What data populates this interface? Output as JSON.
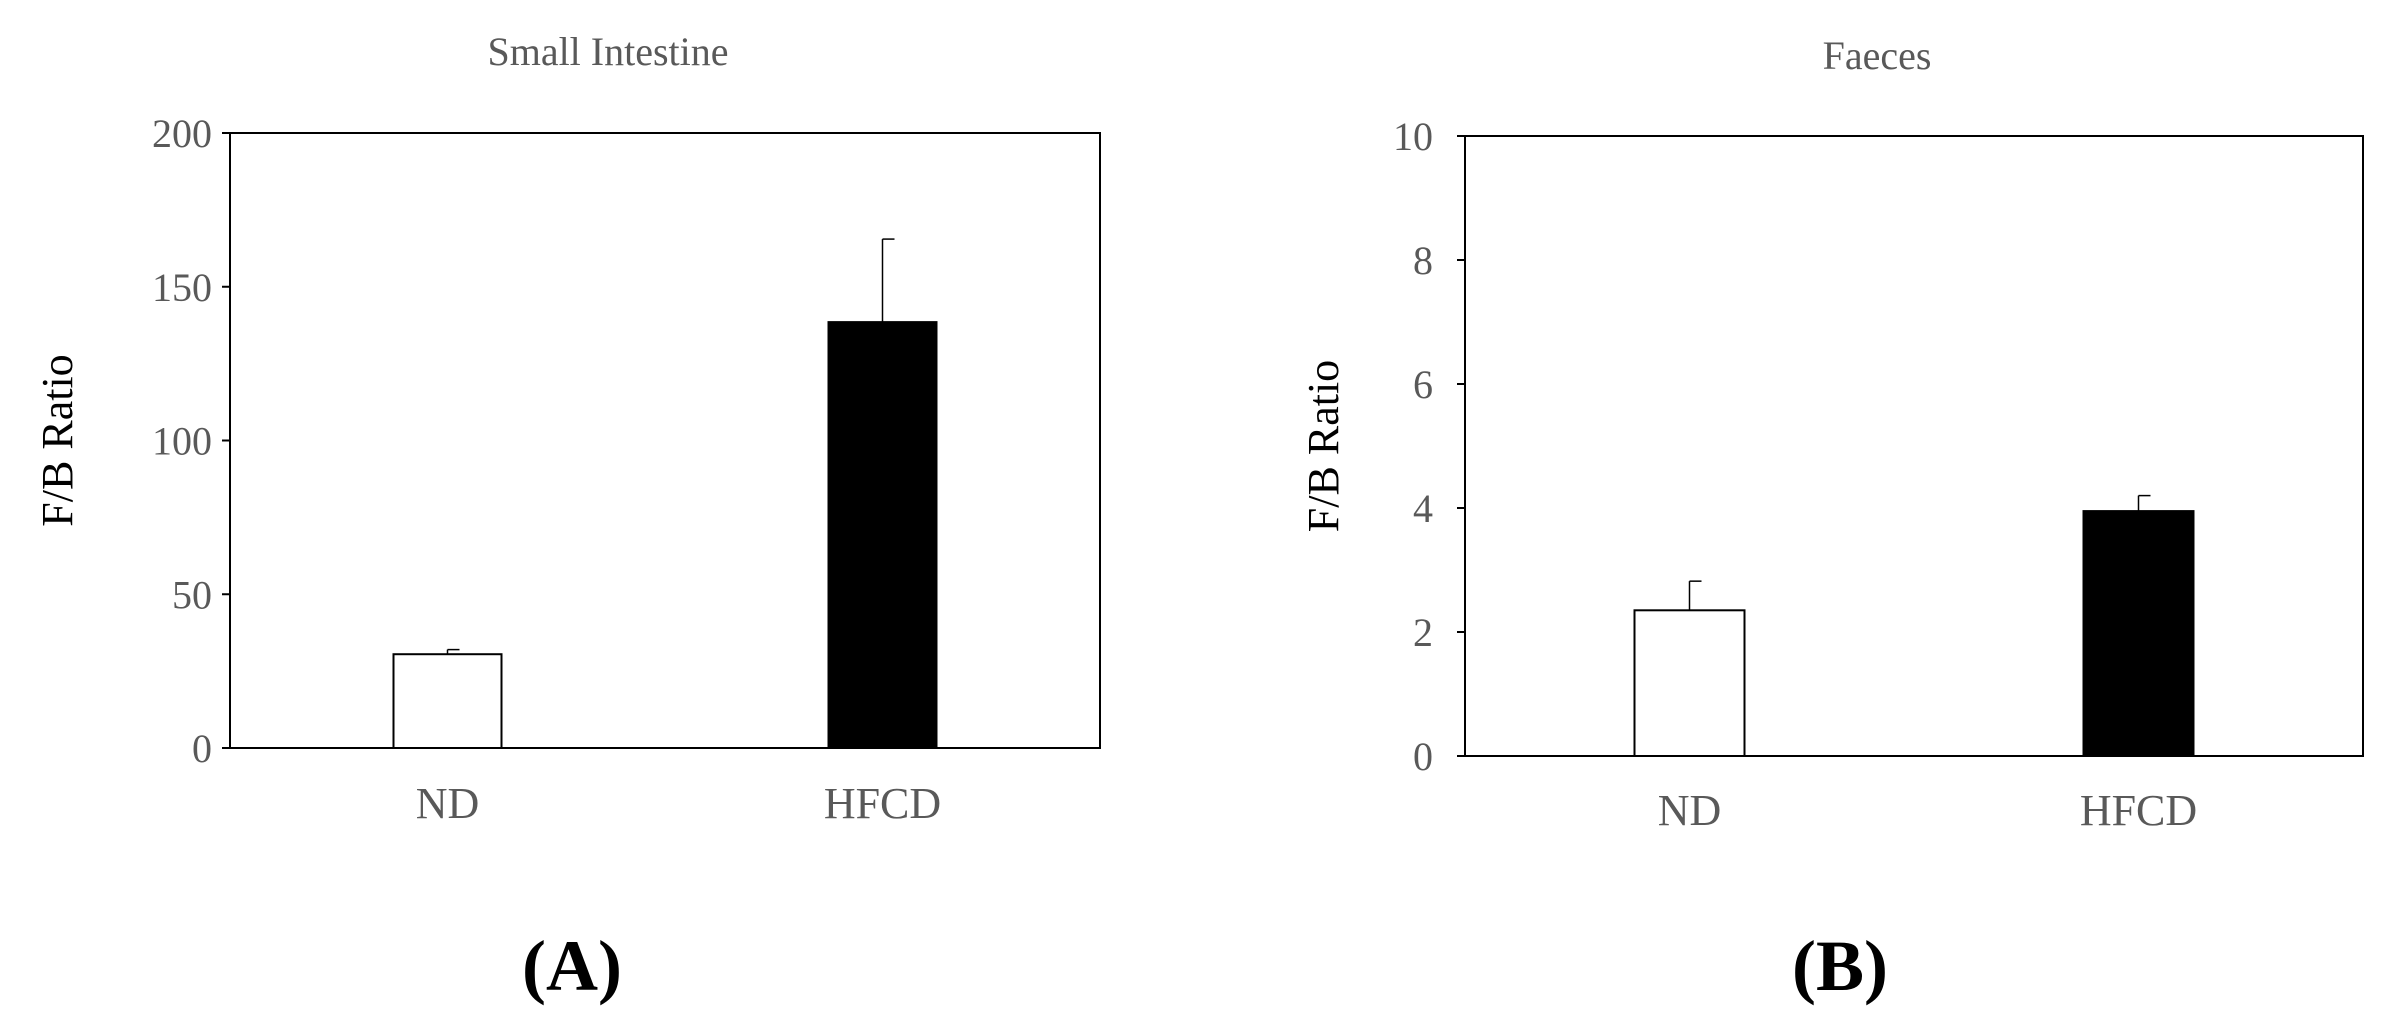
{
  "chart_data": [
    {
      "type": "bar",
      "panel_label": "(A)",
      "title": "Small Intestine",
      "xlabel": "",
      "ylabel": "F/B Ratio",
      "categories": [
        "ND",
        "HFCD"
      ],
      "values": [
        30.5,
        138.5
      ],
      "error": [
        1.5,
        27
      ],
      "bar_colors": [
        "#ffffff",
        "#000000"
      ],
      "ylim": [
        0,
        200
      ],
      "yticks": [
        0,
        50,
        100,
        150,
        200
      ],
      "grid": false,
      "legend": "none"
    },
    {
      "type": "bar",
      "panel_label": "(B)",
      "title": "Faeces",
      "xlabel": "",
      "ylabel": "F/B Ratio",
      "categories": [
        "ND",
        "HFCD"
      ],
      "values": [
        2.35,
        3.95
      ],
      "error": [
        0.47,
        0.25
      ],
      "bar_colors": [
        "#ffffff",
        "#000000"
      ],
      "ylim": [
        0,
        10
      ],
      "yticks": [
        0,
        2,
        4,
        6,
        8,
        10
      ],
      "grid": false,
      "legend": "none"
    }
  ]
}
